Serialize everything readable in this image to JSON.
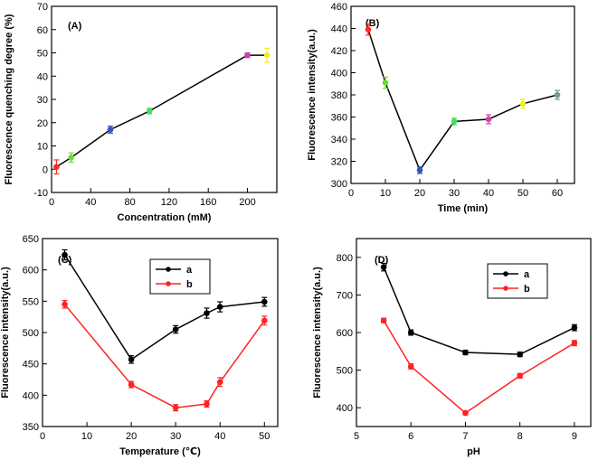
{
  "chart_data": [
    {
      "panel": "(A)",
      "type": "line",
      "xlabel": "Concentration (mM)",
      "ylabel": "Fluorescence quenching degree (%)",
      "xlim": [
        0,
        230
      ],
      "ylim": [
        -10,
        70
      ],
      "xticks": [
        0,
        40,
        80,
        120,
        160,
        200
      ],
      "yticks": [
        -10,
        0,
        10,
        20,
        30,
        40,
        50,
        60,
        70
      ],
      "legend": null,
      "series": [
        {
          "name": "",
          "line_color": "#000000",
          "x": [
            5,
            20,
            60,
            100,
            200,
            220
          ],
          "y": [
            1,
            5,
            17,
            25,
            49,
            49
          ],
          "err": [
            3,
            2,
            1.5,
            1.2,
            1,
            3
          ],
          "point_colors": [
            "#ff2a2a",
            "#66dd33",
            "#3355bb",
            "#44dd66",
            "#cc44aa",
            "#f2ee22"
          ]
        }
      ]
    },
    {
      "panel": "(B)",
      "type": "line",
      "xlabel": "Time (min)",
      "ylabel": "Fluorescence intensity(a.u.)",
      "xlim": [
        0,
        65
      ],
      "ylim": [
        300,
        460
      ],
      "xticks": [
        0,
        10,
        20,
        30,
        40,
        50,
        60
      ],
      "yticks": [
        300,
        320,
        340,
        360,
        380,
        400,
        420,
        440,
        460
      ],
      "legend": null,
      "series": [
        {
          "name": "",
          "line_color": "#000000",
          "x": [
            5,
            10,
            20,
            30,
            40,
            50,
            60
          ],
          "y": [
            439,
            391,
            312,
            356,
            358,
            372,
            380
          ],
          "err": [
            5,
            5,
            3,
            3,
            4,
            4,
            4
          ],
          "point_colors": [
            "#ff2a2a",
            "#66dd33",
            "#3355bb",
            "#44dd66",
            "#cc44aa",
            "#f2ee22",
            "#779988"
          ]
        }
      ]
    },
    {
      "panel": "(C)",
      "type": "line",
      "xlabel": "Temperature (℃)",
      "ylabel": "Fluorescence intensity(a.u.)",
      "xlim": [
        0,
        53
      ],
      "ylim": [
        350,
        650
      ],
      "xticks": [
        0,
        10,
        20,
        30,
        40,
        50
      ],
      "yticks": [
        350,
        400,
        450,
        500,
        550,
        600,
        650
      ],
      "legend": {
        "position": "top-center",
        "entries": [
          "a",
          "b"
        ]
      },
      "series": [
        {
          "name": "a",
          "line_color": "#000000",
          "x": [
            5,
            20,
            30,
            37,
            40,
            50
          ],
          "y": [
            624,
            457,
            505,
            531,
            541,
            549
          ],
          "err": [
            8,
            6,
            6,
            8,
            8,
            7
          ]
        },
        {
          "name": "b",
          "line_color": "#ff2222",
          "x": [
            5,
            20,
            30,
            37,
            40,
            50
          ],
          "y": [
            545,
            417,
            380,
            386,
            421,
            519
          ],
          "err": [
            6,
            5,
            5,
            5,
            7,
            7
          ]
        }
      ]
    },
    {
      "panel": "(D)",
      "type": "line",
      "xlabel": "pH",
      "ylabel": "Fluorescence intensity(a.u.)",
      "xlim": [
        5,
        9.3
      ],
      "ylim": [
        350,
        850
      ],
      "xticks": [
        5,
        6,
        7,
        8,
        9
      ],
      "yticks": [
        400,
        500,
        600,
        700,
        800
      ],
      "legend": {
        "position": "top-center",
        "entries": [
          "a",
          "b"
        ]
      },
      "series": [
        {
          "name": "a",
          "line_color": "#000000",
          "x": [
            5.5,
            6,
            7,
            8,
            9
          ],
          "y": [
            774,
            600,
            547,
            542,
            613
          ],
          "err": [
            10,
            7,
            6,
            6,
            8
          ]
        },
        {
          "name": "b",
          "line_color": "#ff2222",
          "x": [
            5.5,
            6,
            7,
            8,
            9
          ],
          "y": [
            632,
            510,
            386,
            485,
            572
          ],
          "err": [
            6,
            7,
            5,
            6,
            7
          ]
        }
      ]
    }
  ]
}
